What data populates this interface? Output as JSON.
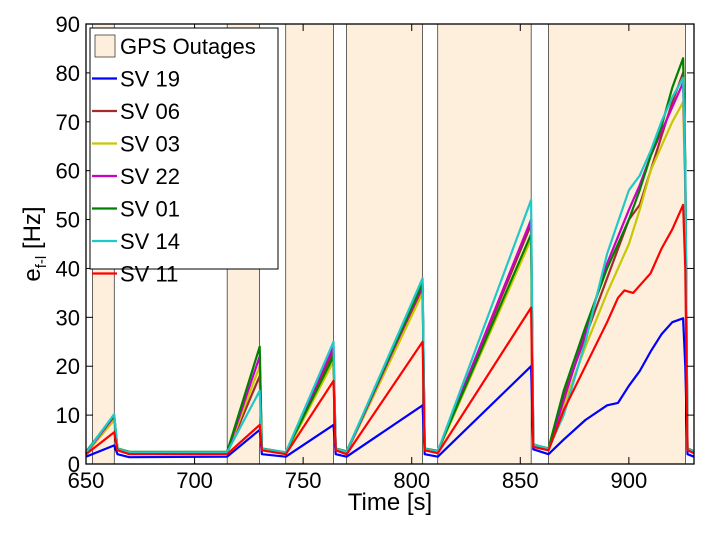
{
  "chart_data": {
    "type": "line",
    "xlabel": "Time [s]",
    "ylabel_main": "e",
    "ylabel_sub": "f-l",
    "ylabel_unit": " [Hz]",
    "xlim": [
      650,
      930
    ],
    "ylim": [
      0,
      90
    ],
    "xticks": [
      650,
      700,
      750,
      800,
      850,
      900
    ],
    "yticks": [
      0,
      10,
      20,
      30,
      40,
      50,
      60,
      70,
      80,
      90
    ],
    "grid": false,
    "legend_position": "top-left",
    "outage_label": "GPS Outages",
    "outage_color": "#fdefdc",
    "outages": [
      [
        653,
        663
      ],
      [
        715,
        730
      ],
      [
        742,
        764
      ],
      [
        770,
        805
      ],
      [
        812,
        855
      ],
      [
        863,
        926
      ]
    ],
    "series": [
      {
        "name": "SV 19",
        "color": "#0000ff",
        "x": [
          650,
          663,
          664.5,
          670,
          715,
          730,
          731,
          742,
          764,
          765,
          770,
          805,
          806,
          812,
          855,
          856,
          863,
          870,
          880,
          890,
          895,
          900,
          905,
          910,
          915,
          920,
          925,
          926,
          927,
          930
        ],
        "y": [
          1.5,
          3.8,
          2.0,
          1.4,
          1.5,
          7.0,
          2.0,
          1.5,
          8.0,
          2.0,
          1.5,
          12.0,
          2.0,
          1.5,
          20.0,
          3.0,
          2.0,
          5.0,
          9.0,
          12.0,
          12.5,
          16.0,
          19.0,
          23.0,
          26.5,
          29.0,
          29.8,
          20.0,
          2.0,
          1.5
        ]
      },
      {
        "name": "SV 06",
        "color": "#a52a2a",
        "x": [
          650,
          663,
          664.5,
          670,
          715,
          730,
          731,
          742,
          764,
          765,
          770,
          805,
          806,
          812,
          855,
          856,
          863,
          870,
          880,
          890,
          900,
          905,
          910,
          915,
          920,
          925,
          926,
          927,
          930
        ],
        "y": [
          2.0,
          9.5,
          3.0,
          2.2,
          2.2,
          18.0,
          3.0,
          2.2,
          23.0,
          3.0,
          2.3,
          36.0,
          3.0,
          2.5,
          49.0,
          4.0,
          3.0,
          14.0,
          26.0,
          38.0,
          50.0,
          53.0,
          60.0,
          67.0,
          74.0,
          80.0,
          60.0,
          3.0,
          2.5
        ]
      },
      {
        "name": "SV 03",
        "color": "#c8c800",
        "x": [
          650,
          663,
          664.5,
          670,
          715,
          730,
          731,
          742,
          764,
          765,
          770,
          805,
          806,
          812,
          855,
          856,
          863,
          870,
          880,
          890,
          900,
          905,
          910,
          915,
          920,
          925,
          926,
          927,
          930
        ],
        "y": [
          2.1,
          9.0,
          3.0,
          2.2,
          2.2,
          20.0,
          3.0,
          2.2,
          21.0,
          3.0,
          2.3,
          35.0,
          3.0,
          2.5,
          46.0,
          4.0,
          3.0,
          12.0,
          24.0,
          35.0,
          45.0,
          52.0,
          60.0,
          65.0,
          70.0,
          74.0,
          56.0,
          3.0,
          2.5
        ]
      },
      {
        "name": "SV 22",
        "color": "#c800c8",
        "x": [
          650,
          663,
          664.5,
          670,
          715,
          730,
          731,
          742,
          764,
          765,
          770,
          805,
          806,
          812,
          855,
          856,
          863,
          870,
          880,
          890,
          900,
          905,
          910,
          915,
          920,
          925,
          926,
          927,
          930
        ],
        "y": [
          2.2,
          9.8,
          3.0,
          2.3,
          2.3,
          22.0,
          3.0,
          2.3,
          24.0,
          3.0,
          2.4,
          36.5,
          3.0,
          2.5,
          50.0,
          4.0,
          3.0,
          13.0,
          27.0,
          41.0,
          52.0,
          57.0,
          63.0,
          68.0,
          73.0,
          78.0,
          58.0,
          3.0,
          2.5
        ]
      },
      {
        "name": "SV 01",
        "color": "#008000",
        "x": [
          650,
          663,
          664.5,
          670,
          715,
          730,
          731,
          742,
          764,
          765,
          770,
          805,
          806,
          812,
          855,
          856,
          863,
          870,
          880,
          890,
          900,
          905,
          910,
          915,
          920,
          925,
          926,
          927,
          930
        ],
        "y": [
          2.5,
          10.0,
          3.2,
          2.5,
          2.5,
          24.0,
          3.2,
          2.4,
          22.0,
          3.2,
          2.6,
          37.0,
          3.2,
          2.7,
          47.0,
          4.0,
          3.2,
          15.0,
          28.0,
          40.0,
          50.0,
          56.0,
          63.0,
          69.0,
          77.0,
          83.0,
          62.0,
          3.2,
          2.6
        ]
      },
      {
        "name": "SV 14",
        "color": "#20c8c8",
        "x": [
          650,
          663,
          664.5,
          670,
          715,
          730,
          731,
          742,
          764,
          765,
          770,
          805,
          806,
          812,
          855,
          856,
          863,
          870,
          880,
          890,
          900,
          905,
          910,
          915,
          920,
          925,
          926,
          927,
          930
        ],
        "y": [
          2.3,
          10.2,
          3.1,
          2.4,
          2.4,
          15.0,
          3.1,
          2.4,
          25.0,
          3.1,
          2.5,
          38.0,
          3.1,
          2.6,
          54.0,
          4.0,
          3.1,
          10.0,
          25.0,
          43.0,
          56.0,
          59.0,
          64.0,
          70.0,
          75.0,
          79.0,
          60.0,
          3.1,
          2.5
        ]
      },
      {
        "name": "SV 11",
        "color": "#ff0000",
        "x": [
          650,
          663,
          664.5,
          670,
          715,
          730,
          731,
          742,
          764,
          765,
          770,
          805,
          806,
          812,
          855,
          856,
          863,
          870,
          880,
          890,
          895,
          898,
          902,
          910,
          915,
          920,
          925,
          926,
          927,
          930
        ],
        "y": [
          2.0,
          6.5,
          2.8,
          2.0,
          2.0,
          8.0,
          2.8,
          2.0,
          17.0,
          2.8,
          2.0,
          25.0,
          2.8,
          2.2,
          32.0,
          3.5,
          2.8,
          11.0,
          20.0,
          29.0,
          34.0,
          35.5,
          35.0,
          39.0,
          44.0,
          48.0,
          53.0,
          40.0,
          2.8,
          2.2
        ]
      }
    ]
  }
}
